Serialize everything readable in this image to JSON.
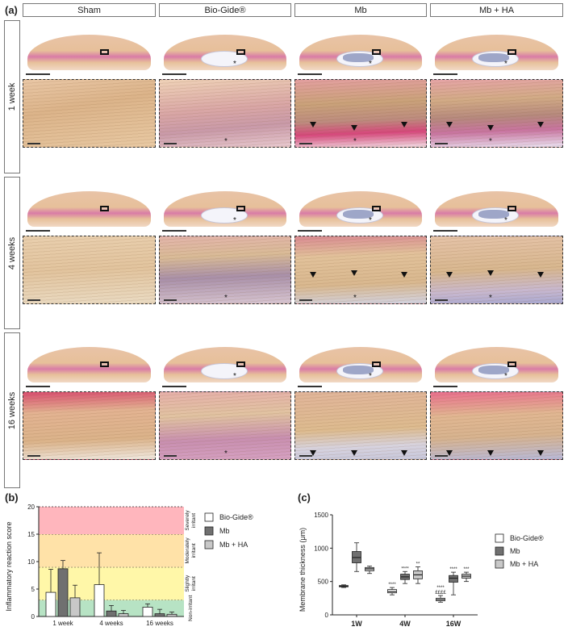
{
  "panel_a": {
    "letter": "(a)",
    "columns": [
      "Sham",
      "Bio-Gide®",
      "Mb",
      "Mb + HA"
    ],
    "rows": [
      "1 week",
      "4 weeks",
      "16 weeks"
    ],
    "asterisk": "*"
  },
  "panel_b": {
    "letter": "(b)",
    "chart_data": {
      "type": "bar",
      "ylabel": "Inflammatory reaction score",
      "ylim": [
        0,
        20
      ],
      "yticks": [
        0,
        5,
        10,
        15,
        20
      ],
      "categories": [
        "1 week",
        "4 weeks",
        "16 weeks"
      ],
      "series": [
        {
          "name": "Bio-Gide®",
          "color": "#ffffff",
          "values": [
            4.4,
            5.8,
            1.7
          ],
          "errors": [
            4.2,
            5.8,
            0.6
          ]
        },
        {
          "name": "Mb",
          "color": "#707070",
          "values": [
            8.7,
            1.0,
            0.5
          ],
          "errors": [
            1.5,
            1.0,
            0.8
          ]
        },
        {
          "name": "Mb + HA",
          "color": "#c8c8c8",
          "values": [
            3.4,
            0.5,
            0.4
          ],
          "errors": [
            2.3,
            0.6,
            0.4
          ]
        }
      ],
      "bands": [
        {
          "label": "Non-irritant",
          "from": 0,
          "to": 3,
          "color": "#b7e3c4"
        },
        {
          "label": "Slightly irritant",
          "from": 3,
          "to": 9,
          "color": "#fff7a8"
        },
        {
          "label": "Moderately irritant",
          "from": 9,
          "to": 15,
          "color": "#ffe2a8"
        },
        {
          "label": "Severely irritant",
          "from": 15,
          "to": 20,
          "color": "#ffb6bd"
        }
      ],
      "legend": "right"
    }
  },
  "panel_c": {
    "letter": "(c)",
    "chart_data": {
      "type": "box",
      "ylabel": "Membrane thickness (μm)",
      "ylim": [
        0,
        1500
      ],
      "yticks": [
        0,
        500,
        1000,
        1500
      ],
      "categories": [
        "1W",
        "4W",
        "16W"
      ],
      "series": [
        {
          "name": "Bio-Gide®",
          "color": "#ffffff",
          "boxes": [
            {
              "min": 410,
              "q1": 420,
              "median": 430,
              "q3": 440,
              "max": 450,
              "annotation": ""
            },
            {
              "min": 300,
              "q1": 330,
              "median": 350,
              "q3": 380,
              "max": 410,
              "annotation": "****"
            },
            {
              "min": 190,
              "q1": 210,
              "median": 230,
              "q3": 250,
              "max": 290,
              "annotation": "****\n££££"
            }
          ]
        },
        {
          "name": "Mb",
          "color": "#707070",
          "boxes": [
            {
              "min": 650,
              "q1": 780,
              "median": 860,
              "q3": 950,
              "max": 1080,
              "annotation": ""
            },
            {
              "min": 470,
              "q1": 530,
              "median": 570,
              "q3": 610,
              "max": 650,
              "annotation": "****"
            },
            {
              "min": 300,
              "q1": 490,
              "median": 550,
              "q3": 590,
              "max": 640,
              "annotation": "****"
            }
          ]
        },
        {
          "name": "Mb + HA",
          "color": "#c8c8c8",
          "boxes": [
            {
              "min": 620,
              "q1": 660,
              "median": 690,
              "q3": 710,
              "max": 730,
              "annotation": ""
            },
            {
              "min": 470,
              "q1": 540,
              "median": 600,
              "q3": 660,
              "max": 720,
              "annotation": "**"
            },
            {
              "min": 500,
              "q1": 550,
              "median": 580,
              "q3": 610,
              "max": 640,
              "annotation": "***"
            }
          ]
        }
      ],
      "legend": "right"
    }
  }
}
